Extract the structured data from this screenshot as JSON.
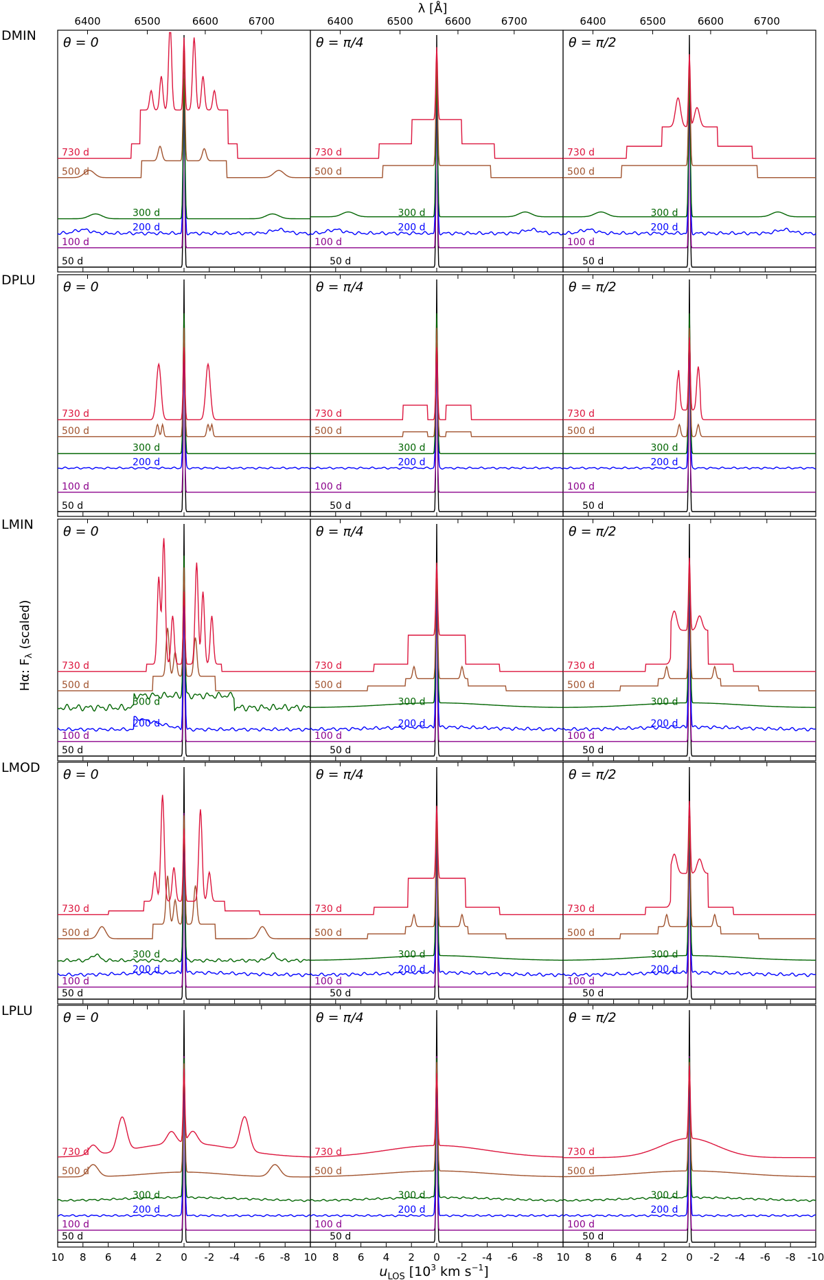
{
  "figure": {
    "top_axis_label": "λ [Å]",
    "bottom_axis_label": "u",
    "bottom_axis_label_sub": "LOS",
    "bottom_axis_label_units": " [10",
    "bottom_axis_label_exp": "3",
    "bottom_axis_label_units2": " km s",
    "bottom_axis_label_exp2": "−1",
    "bottom_axis_label_close": "]",
    "ylabel": "Hα:  F",
    "ylabel_sub": "λ",
    "ylabel_tail": " (scaled)"
  },
  "chart_data": {
    "type": "line",
    "title": "",
    "xlabel": "u_LOS [10^3 km s^-1]",
    "x2label": "λ [Å]",
    "ylabel": "Hα: F_λ (scaled)",
    "xlim": [
      10,
      -10
    ],
    "xticks": [
      10,
      8,
      6,
      4,
      2,
      0,
      -2,
      -4,
      -6,
      -8,
      -10
    ],
    "xticklabels_first_col": [
      "10",
      "8",
      "6",
      "4",
      "2",
      "0",
      "-2",
      "-4",
      "-6",
      "-8",
      "10"
    ],
    "xticklabels_last_col": [
      "10",
      "8",
      "6",
      "4",
      "2",
      "0",
      "-2",
      "-4",
      "-6",
      "-8",
      "-10"
    ],
    "x2ticks": [
      6400,
      6500,
      6600,
      6700
    ],
    "rest_wavelength": 6563,
    "grid": false,
    "legend": "none",
    "epochs": [
      "50 d",
      "100 d",
      "200 d",
      "300 d",
      "500 d",
      "730 d"
    ],
    "epoch_colors": {
      "50 d": "#000000",
      "100 d": "#8b008b",
      "200 d": "#0000ff",
      "300 d": "#006400",
      "500 d": "#a0522d",
      "730 d": "#dc143c"
    },
    "angles": [
      "θ = 0",
      "θ = π/4",
      "θ = π/2"
    ],
    "models": [
      "DMIN",
      "DPLU",
      "LMIN",
      "LMOD",
      "LPLU"
    ],
    "panels": [
      {
        "model": "DMIN",
        "theta": "θ = 0",
        "baselines": {
          "50 d": 0.02,
          "100 d": 0.1,
          "200 d": 0.16,
          "300 d": 0.22,
          "500 d": 0.39,
          "730 d": 0.47
        }
      },
      {
        "model": "DMIN",
        "theta": "θ = π/4",
        "baselines": {
          "50 d": 0.02,
          "100 d": 0.1,
          "200 d": 0.16,
          "300 d": 0.22,
          "500 d": 0.39,
          "730 d": 0.47
        }
      },
      {
        "model": "DMIN",
        "theta": "θ = π/2",
        "baselines": {
          "50 d": 0.02,
          "100 d": 0.1,
          "200 d": 0.16,
          "300 d": 0.22,
          "500 d": 0.39,
          "730 d": 0.47
        }
      },
      {
        "model": "DPLU",
        "theta": "θ = 0",
        "baselines": {
          "50 d": 0.02,
          "100 d": 0.1,
          "200 d": 0.2,
          "300 d": 0.26,
          "500 d": 0.33,
          "730 d": 0.4
        }
      },
      {
        "model": "DPLU",
        "theta": "θ = π/4",
        "baselines": {
          "50 d": 0.02,
          "100 d": 0.1,
          "200 d": 0.2,
          "300 d": 0.26,
          "500 d": 0.33,
          "730 d": 0.4
        }
      },
      {
        "model": "DPLU",
        "theta": "θ = π/2",
        "baselines": {
          "50 d": 0.02,
          "100 d": 0.1,
          "200 d": 0.2,
          "300 d": 0.26,
          "500 d": 0.33,
          "730 d": 0.4
        }
      },
      {
        "model": "LMIN",
        "theta": "θ = 0",
        "baselines": {
          "50 d": 0.02,
          "100 d": 0.08,
          "200 d": 0.13,
          "300 d": 0.22,
          "500 d": 0.29,
          "730 d": 0.37
        }
      },
      {
        "model": "LMIN",
        "theta": "θ = π/4",
        "baselines": {
          "50 d": 0.02,
          "100 d": 0.08,
          "200 d": 0.13,
          "300 d": 0.22,
          "500 d": 0.29,
          "730 d": 0.37
        }
      },
      {
        "model": "LMIN",
        "theta": "θ = π/2",
        "baselines": {
          "50 d": 0.02,
          "100 d": 0.08,
          "200 d": 0.13,
          "300 d": 0.22,
          "500 d": 0.29,
          "730 d": 0.37
        }
      },
      {
        "model": "LMOD",
        "theta": "θ = 0",
        "baselines": {
          "50 d": 0.02,
          "100 d": 0.07,
          "200 d": 0.12,
          "300 d": 0.18,
          "500 d": 0.27,
          "730 d": 0.37
        }
      },
      {
        "model": "LMOD",
        "theta": "θ = π/4",
        "baselines": {
          "50 d": 0.02,
          "100 d": 0.07,
          "200 d": 0.12,
          "300 d": 0.18,
          "500 d": 0.27,
          "730 d": 0.37
        }
      },
      {
        "model": "LMOD",
        "theta": "θ = π/2",
        "baselines": {
          "50 d": 0.02,
          "100 d": 0.07,
          "200 d": 0.12,
          "300 d": 0.18,
          "500 d": 0.27,
          "730 d": 0.37
        }
      },
      {
        "model": "LPLU",
        "theta": "θ = 0",
        "baselines": {
          "50 d": 0.02,
          "100 d": 0.07,
          "200 d": 0.13,
          "300 d": 0.19,
          "500 d": 0.29,
          "730 d": 0.37
        }
      },
      {
        "model": "LPLU",
        "theta": "θ = π/4",
        "baselines": {
          "50 d": 0.02,
          "100 d": 0.07,
          "200 d": 0.13,
          "300 d": 0.19,
          "500 d": 0.29,
          "730 d": 0.37
        }
      },
      {
        "model": "LPLU",
        "theta": "θ = π/2",
        "baselines": {
          "50 d": 0.02,
          "100 d": 0.07,
          "200 d": 0.13,
          "300 d": 0.19,
          "500 d": 0.29,
          "730 d": 0.37
        }
      }
    ],
    "central_peak_u": 0,
    "notes_on_values": "Offsets are vertical baselines of each epoch curve in scaled flux units (0 = panel bottom, 1 = panel top); profiles are approximate."
  }
}
